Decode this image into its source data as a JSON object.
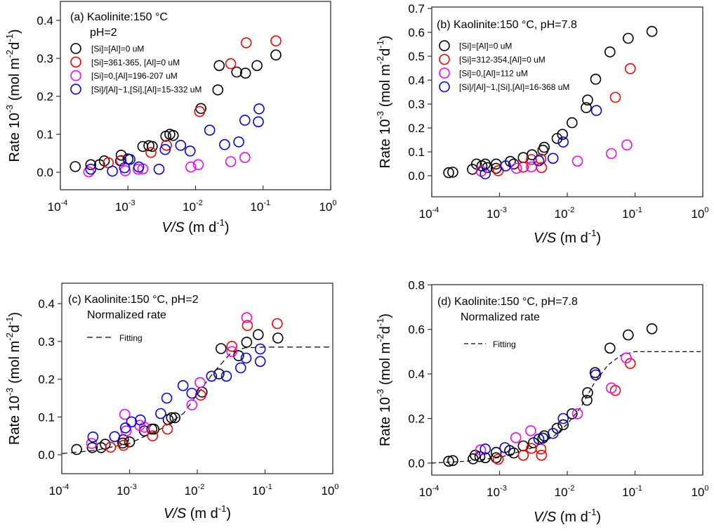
{
  "colors": {
    "black": "#000000",
    "red": "#ff0000",
    "magenta": "#ff00ff",
    "blue": "#0000ff"
  },
  "chart_data": [
    {
      "id": "a",
      "type": "scatter",
      "x_scale": "log",
      "xlim": [
        0.0001,
        1
      ],
      "ylim": [
        -0.046,
        0.45
      ],
      "title_lines": [
        "(a) Kaolinite:150 °C",
        "pH=2"
      ],
      "xlabel": {
        "italic": "V/S",
        "text": " (m d",
        "sup": "-1",
        "end": ")"
      },
      "ylabel": {
        "parts": [
          "Rate 10",
          "-3",
          " (mol m",
          "-2",
          "d",
          "-1",
          ")"
        ]
      },
      "yticks": [
        "0.0",
        "0.1",
        "0.2",
        "0.3",
        "0.4"
      ],
      "ytick_values": [
        0,
        0.1,
        0.2,
        0.3,
        0.4
      ],
      "xticks": [
        {
          "base": "10",
          "exp": "-4"
        },
        {
          "base": "10",
          "exp": "-3"
        },
        {
          "base": "10",
          "exp": "-2"
        },
        {
          "base": "10",
          "exp": "-1"
        },
        {
          "base": "10",
          "exp": "0"
        }
      ],
      "legend_position": "top-left",
      "series": [
        {
          "name": "[Si]=[Al]=0 uM",
          "color": "black",
          "log10_x": [
            -3.78,
            -3.55,
            -3.42,
            -3.35,
            -3.1,
            -3.11,
            -3.0,
            -2.78,
            -2.69,
            -2.64,
            -2.44,
            -2.38,
            -2.33,
            -1.92,
            -1.67,
            -1.65,
            -1.39,
            -1.26,
            -1.09,
            -0.81
          ],
          "y": [
            0.015,
            0.02,
            0.02,
            0.03,
            0.045,
            0.03,
            0.035,
            0.068,
            0.07,
            0.068,
            0.095,
            0.1,
            0.097,
            0.168,
            0.217,
            0.281,
            0.264,
            0.261,
            0.281,
            0.309
          ]
        },
        {
          "name": "[Si]=361-365, [Al]=0 uM",
          "color": "red",
          "log10_x": [
            -3.29,
            -3.1,
            -2.66,
            -2.43,
            -1.94,
            -1.48,
            -1.25,
            -0.81
          ],
          "y": [
            0.025,
            0.031,
            0.052,
            0.071,
            0.16,
            0.286,
            0.341,
            0.346
          ]
        },
        {
          "name": "[Si]=0,[Al]=196-207 uM",
          "color": "magenta",
          "log10_x": [
            -3.58,
            -3.04,
            -2.85,
            -2.78,
            -2.07,
            -1.96,
            -1.48,
            -1.27
          ],
          "y": [
            0.001,
            0.004,
            0.008,
            0.009,
            0.014,
            0.02,
            0.028,
            0.039
          ]
        },
        {
          "name": "[Si]/[Al]~1,[Si],[Al]=15-332 uM",
          "color": "blue",
          "log10_x": [
            -3.55,
            -3.23,
            -3.05,
            -2.97,
            -2.84,
            -2.54,
            -2.45,
            -2.22,
            -2.08,
            -1.79,
            -1.57,
            -1.36,
            -1.27,
            -1.07,
            -1.06
          ],
          "y": [
            0.008,
            0.003,
            0.012,
            0.034,
            0.014,
            0.008,
            0.06,
            0.071,
            0.056,
            0.111,
            0.073,
            0.08,
            0.137,
            0.133,
            0.167
          ]
        }
      ]
    },
    {
      "id": "b",
      "type": "scatter",
      "x_scale": "log",
      "xlim": [
        0.0001,
        1
      ],
      "ylim": [
        -0.088,
        0.706
      ],
      "title_lines": [
        "(b) Kaolinite:150 °C, pH=7.8"
      ],
      "xlabel": {
        "italic": "V/S",
        "text": " (m d",
        "sup": "-1",
        "end": ")"
      },
      "ylabel": {
        "parts": [
          "Rate 10",
          "-3",
          " (mol m",
          "-2",
          "d",
          "-1",
          ")"
        ]
      },
      "yticks": [
        "0.0",
        "0.1",
        "0.2",
        "0.3",
        "0.4",
        "0.5",
        "0.6",
        "0.7"
      ],
      "ytick_values": [
        0,
        0.1,
        0.2,
        0.3,
        0.4,
        0.5,
        0.6,
        0.7
      ],
      "xticks": [
        {
          "base": "10",
          "exp": "-4"
        },
        {
          "base": "10",
          "exp": "-3"
        },
        {
          "base": "10",
          "exp": "-2"
        },
        {
          "base": "10",
          "exp": "-1"
        },
        {
          "base": "10",
          "exp": "0"
        }
      ],
      "legend_position": "top-left",
      "series": [
        {
          "name": "[Si]=[Al]=0 uM",
          "color": "black",
          "log10_x": [
            -3.75,
            -3.69,
            -3.4,
            -3.34,
            -3.26,
            -3.21,
            -3.18,
            -3.05,
            -3.05,
            -2.84,
            -2.79,
            -2.65,
            -2.52,
            -2.36,
            -2.34,
            -2.15,
            -2.07,
            -1.93,
            -1.72,
            -1.7,
            -1.58,
            -1.37,
            -1.1,
            -0.75
          ],
          "y": [
            0.013,
            0.015,
            0.027,
            0.049,
            0.041,
            0.049,
            0.034,
            0.049,
            0.031,
            0.06,
            0.049,
            0.076,
            0.088,
            0.107,
            0.119,
            0.156,
            0.173,
            0.222,
            0.285,
            0.317,
            0.404,
            0.518,
            0.575,
            0.604
          ]
        },
        {
          "name": "[Si]=312-354,[Al]=0 uM",
          "color": "red",
          "log10_x": [
            -3.02,
            -2.65,
            -2.53,
            -2.39,
            -2.38,
            -1.29,
            -1.07
          ],
          "y": [
            0.021,
            0.036,
            0.068,
            0.07,
            0.034,
            0.328,
            0.448
          ]
        },
        {
          "name": "[Si]=0,[Al]=112 uM",
          "color": "magenta",
          "log10_x": [
            -3.27,
            -2.75,
            -2.53,
            -1.85,
            -1.35,
            -1.12
          ],
          "y": [
            0.019,
            0.031,
            0.037,
            0.061,
            0.093,
            0.129
          ]
        },
        {
          "name": "[Si]/[Al]~1,[Si],[Al]=16-368 uM",
          "color": "blue",
          "log10_x": [
            -3.21,
            -2.91,
            -2.42,
            -2.21,
            -2.06,
            -1.57
          ],
          "y": [
            0.008,
            0.041,
            0.063,
            0.073,
            0.141,
            0.273
          ]
        }
      ]
    },
    {
      "id": "c",
      "type": "scatter",
      "x_scale": "log",
      "xlim": [
        0.0001,
        1
      ],
      "ylim": [
        -0.05,
        0.454
      ],
      "title_lines": [
        "(c) Kaolinite:150 °C, pH=2",
        "Normalized rate"
      ],
      "xlabel": {
        "italic": "V/S",
        "text": " (m d",
        "sup": "-1",
        "end": ")"
      },
      "ylabel": {
        "parts": [
          "Rate 10",
          "-3",
          " (mol m",
          "-2",
          "d",
          "-1",
          ")"
        ]
      },
      "yticks": [
        "0.0",
        "0.1",
        "0.2",
        "0.3",
        "0.4"
      ],
      "ytick_values": [
        0,
        0.1,
        0.2,
        0.3,
        0.4
      ],
      "xticks": [
        {
          "base": "10",
          "exp": "-4"
        },
        {
          "base": "10",
          "exp": "-3"
        },
        {
          "base": "10",
          "exp": "-2"
        },
        {
          "base": "10",
          "exp": "-1"
        },
        {
          "base": "10",
          "exp": "0"
        }
      ],
      "legend_position": "top-left",
      "fit": {
        "name": "Fitting",
        "dash": "8,5",
        "log10_x": [
          -4,
          -3.5,
          -3,
          -2.5,
          -2.2,
          -2,
          -1.75,
          -1.5,
          -1.3,
          -1,
          0
        ],
        "y": [
          0.003,
          0.012,
          0.03,
          0.072,
          0.11,
          0.16,
          0.22,
          0.27,
          0.283,
          0.285,
          0.285
        ]
      },
      "series": [
        {
          "name": "[Si]=[Al]=0 uM",
          "color": "black",
          "log10_x": [
            -3.78,
            -3.55,
            -3.42,
            -3.36,
            -3.1,
            -3.09,
            -3.0,
            -2.78,
            -2.67,
            -2.64,
            -2.43,
            -2.38,
            -2.33,
            -1.93,
            -1.68,
            -1.65,
            -1.39,
            -1.27,
            -1.1,
            -0.81
          ],
          "y": [
            0.014,
            0.019,
            0.019,
            0.028,
            0.031,
            0.04,
            0.034,
            0.063,
            0.068,
            0.068,
            0.093,
            0.098,
            0.098,
            0.166,
            0.214,
            0.281,
            0.262,
            0.298,
            0.318,
            0.309
          ]
        },
        {
          "name": "red",
          "color": "red",
          "log10_x": [
            -3.28,
            -3.09,
            -2.66,
            -2.44,
            -1.95,
            -1.49,
            -1.26,
            -0.82
          ],
          "y": [
            0.02,
            0.025,
            0.05,
            0.068,
            0.158,
            0.287,
            0.342,
            0.347
          ]
        },
        {
          "name": "magenta",
          "color": "magenta",
          "log10_x": [
            -3.56,
            -3.07,
            -3.05,
            -2.85,
            -2.78,
            -2.08,
            -1.96,
            -1.49,
            -1.27
          ],
          "y": [
            0.03,
            0.107,
            0.063,
            0.078,
            0.073,
            0.132,
            0.191,
            0.273,
            0.363
          ]
        },
        {
          "name": "blue",
          "color": "blue",
          "log10_x": [
            -3.54,
            -3.22,
            -3.06,
            -2.97,
            -2.84,
            -2.54,
            -2.45,
            -2.21,
            -2.08,
            -1.79,
            -1.57,
            -1.36,
            -1.28,
            -1.07,
            -1.07
          ],
          "y": [
            0.047,
            0.048,
            0.071,
            0.087,
            0.092,
            0.109,
            0.15,
            0.183,
            0.163,
            0.208,
            0.208,
            0.23,
            0.256,
            0.247,
            0.28
          ]
        }
      ]
    },
    {
      "id": "d",
      "type": "scatter",
      "x_scale": "log",
      "xlim": [
        0.0001,
        1
      ],
      "ylim": [
        -0.054,
        0.801
      ],
      "title_lines": [
        "(d) Kaolinite:150 °C, pH=7.8",
        "Normalized rate"
      ],
      "xlabel": {
        "italic": "V/S",
        "text": " (m d",
        "sup": "-1",
        "end": ")"
      },
      "ylabel": {
        "parts": [
          "Rate 10",
          "-3",
          " (mol m",
          "-2",
          "d",
          "-1",
          ")"
        ]
      },
      "yticks": [
        "0.0",
        "0.2",
        "0.4",
        "0.6",
        "0.8"
      ],
      "ytick_values": [
        0,
        0.2,
        0.4,
        0.6,
        0.8
      ],
      "xticks": [
        {
          "base": "10",
          "exp": "-4"
        },
        {
          "base": "10",
          "exp": "-3"
        },
        {
          "base": "10",
          "exp": "-2"
        },
        {
          "base": "10",
          "exp": "-1"
        },
        {
          "base": "10",
          "exp": "0"
        }
      ],
      "legend_position": "top-left",
      "fit": {
        "name": "Fitting",
        "dash": "6,4",
        "log10_x": [
          -4,
          -3.5,
          -3,
          -2.5,
          -2.2,
          -2,
          -1.8,
          -1.6,
          -1.4,
          -1.2,
          -1,
          0
        ],
        "y": [
          0.0,
          0.008,
          0.025,
          0.07,
          0.12,
          0.175,
          0.25,
          0.36,
          0.44,
          0.485,
          0.5,
          0.5
        ]
      },
      "series": [
        {
          "name": "black",
          "color": "black",
          "log10_x": [
            -3.75,
            -3.69,
            -3.39,
            -3.36,
            -3.29,
            -3.21,
            -3.05,
            -3.05,
            -2.85,
            -2.79,
            -2.65,
            -2.5,
            -2.36,
            -2.34,
            -2.15,
            -2.06,
            -1.93,
            -1.71,
            -1.7,
            -1.59,
            -1.37,
            -1.1,
            -0.75
          ],
          "y": [
            0.008,
            0.011,
            0.019,
            0.035,
            0.029,
            0.024,
            0.024,
            0.048,
            0.056,
            0.045,
            0.077,
            0.091,
            0.112,
            0.122,
            0.156,
            0.172,
            0.221,
            0.282,
            0.316,
            0.406,
            0.516,
            0.575,
            0.603
          ]
        },
        {
          "name": "red",
          "color": "red",
          "log10_x": [
            -3.02,
            -2.65,
            -2.53,
            -2.39,
            -2.38,
            -1.29,
            -1.07
          ],
          "y": [
            0.017,
            0.035,
            0.066,
            0.063,
            0.035,
            0.326,
            0.447
          ]
        },
        {
          "name": "magenta",
          "color": "magenta",
          "log10_x": [
            -3.28,
            -2.76,
            -2.54,
            -1.85,
            -1.35,
            -1.13
          ],
          "y": [
            0.059,
            0.114,
            0.145,
            0.221,
            0.337,
            0.472
          ]
        },
        {
          "name": "blue",
          "color": "blue",
          "log10_x": [
            -3.21,
            -2.92,
            -2.42,
            -2.21,
            -2.06,
            -1.58
          ],
          "y": [
            0.063,
            0.069,
            0.108,
            0.133,
            0.2,
            0.396
          ]
        }
      ]
    }
  ]
}
